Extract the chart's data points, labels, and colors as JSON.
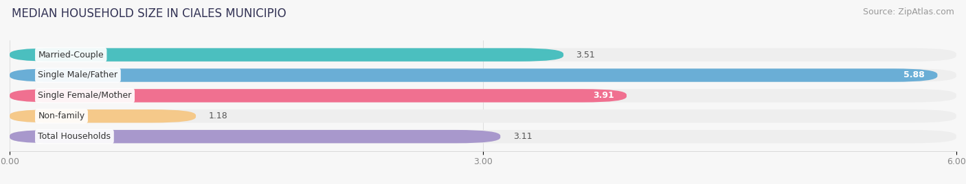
{
  "title": "MEDIAN HOUSEHOLD SIZE IN CIALES MUNICIPIO",
  "source": "Source: ZipAtlas.com",
  "categories": [
    "Married-Couple",
    "Single Male/Father",
    "Single Female/Mother",
    "Non-family",
    "Total Households"
  ],
  "values": [
    3.51,
    5.88,
    3.91,
    1.18,
    3.11
  ],
  "bar_colors": [
    "#4bbfbf",
    "#6aaed6",
    "#f07090",
    "#f5c98a",
    "#a898cc"
  ],
  "bar_bg_colors": [
    "#eeeeee",
    "#eeeeee",
    "#eeeeee",
    "#eeeeee",
    "#eeeeee"
  ],
  "value_inside": [
    false,
    true,
    true,
    false,
    false
  ],
  "xlim": [
    0,
    6.0
  ],
  "xticks": [
    0.0,
    3.0,
    6.0
  ],
  "xtick_labels": [
    "0.00",
    "3.00",
    "6.00"
  ],
  "title_fontsize": 12,
  "source_fontsize": 9,
  "bar_height": 0.65,
  "figsize": [
    14.06,
    2.69
  ],
  "dpi": 100,
  "bg_color": "#f7f7f7"
}
